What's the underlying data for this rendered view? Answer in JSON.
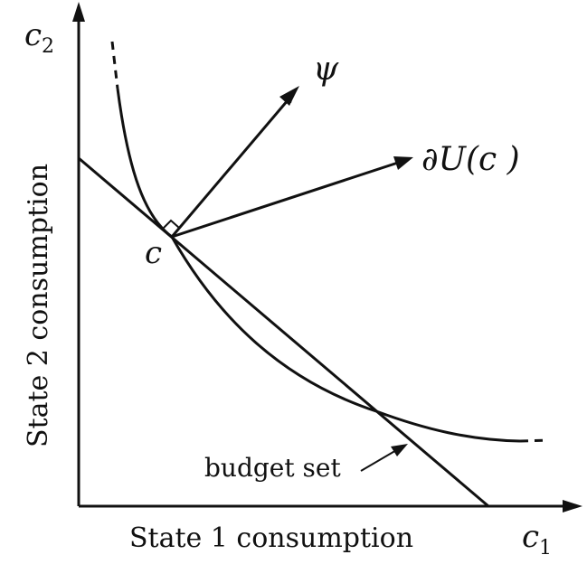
{
  "axes": {
    "y_symbol": "c",
    "y_subscript": "2",
    "x_symbol": "c",
    "x_subscript": "1",
    "x_label": "State 1 consumption",
    "y_label": "State 2 consumption"
  },
  "point_label": "c",
  "vector_labels": {
    "psi": "ψ",
    "gradient": "∂U(c )"
  },
  "budget_label": "budget set"
}
